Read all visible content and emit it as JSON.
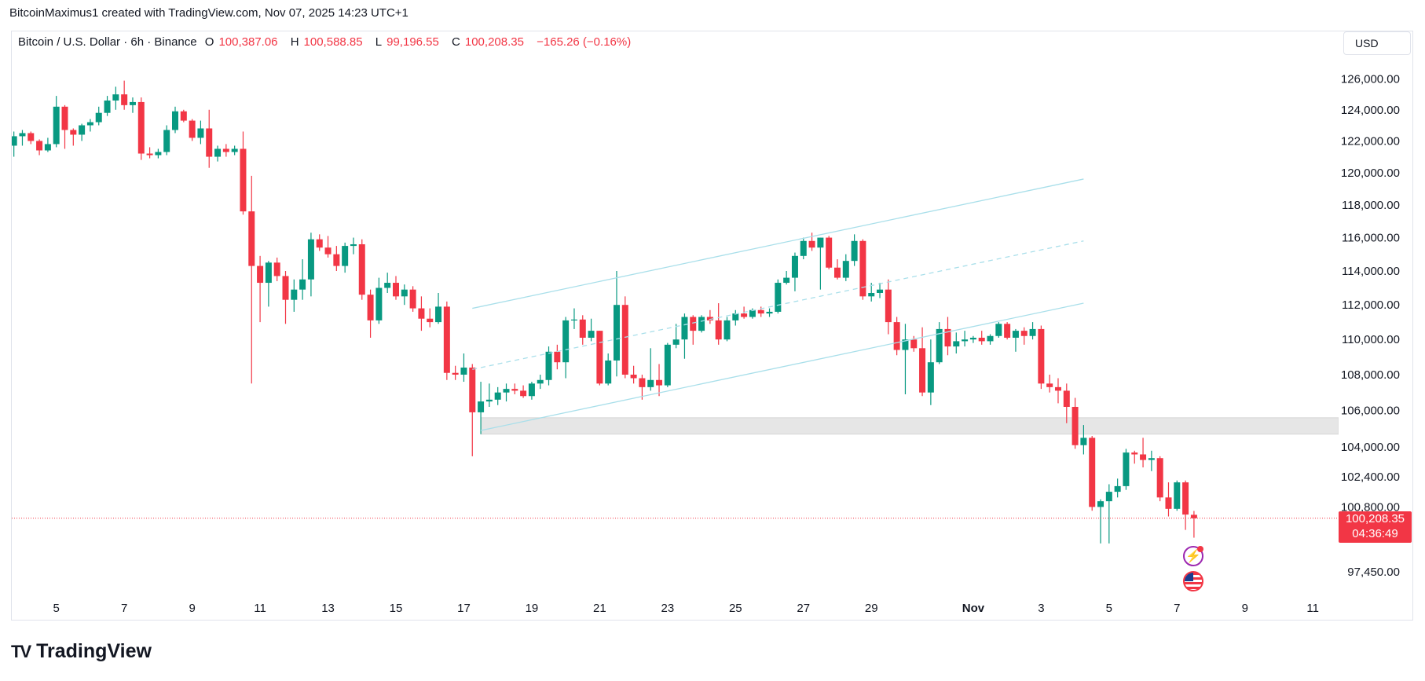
{
  "credit": "BitcoinMaximus1 created with TradingView.com, Nov 07, 2025 14:23 UTC+1",
  "legend": {
    "symbol": "Bitcoin / U.S. Dollar · 6h · Binance",
    "o_label": "O",
    "o_value": "100,387.06",
    "h_label": "H",
    "h_value": "100,588.85",
    "l_label": "L",
    "l_value": "99,196.55",
    "c_label": "C",
    "c_value": "100,208.35",
    "change": "−165.26 (−0.16%)"
  },
  "currency_button": "USD",
  "last_price": {
    "price": "100,208.35",
    "countdown": "04:36:49",
    "value": 100208.35
  },
  "brand": {
    "logo_mark": "TV",
    "name": "TradingView"
  },
  "colors": {
    "up": "#089981",
    "down": "#F23645",
    "channel": "#a9dfea",
    "zone": "#e6e6e6",
    "event_icon": "#9c27b0"
  },
  "icons": [
    "economic-event-icon",
    "us-flag-event-icon"
  ],
  "chart_data": {
    "type": "candlestick",
    "interval": "6h",
    "y_scale": "log",
    "grid": false,
    "y_ticks": [
      {
        "value": 126000,
        "label": "126,000.00"
      },
      {
        "value": 124000,
        "label": "124,000.00"
      },
      {
        "value": 122000,
        "label": "122,000.00"
      },
      {
        "value": 120000,
        "label": "120,000.00"
      },
      {
        "value": 118000,
        "label": "118,000.00"
      },
      {
        "value": 116000,
        "label": "116,000.00"
      },
      {
        "value": 114000,
        "label": "114,000.00"
      },
      {
        "value": 112000,
        "label": "112,000.00"
      },
      {
        "value": 110000,
        "label": "110,000.00"
      },
      {
        "value": 108000,
        "label": "108,000.00"
      },
      {
        "value": 106000,
        "label": "106,000.00"
      },
      {
        "value": 104000,
        "label": "104,000.00"
      },
      {
        "value": 102400,
        "label": "102,400.00"
      },
      {
        "value": 100800,
        "label": "100,800.00"
      },
      {
        "value": 97450,
        "label": "97,450.00"
      }
    ],
    "x_ticks": [
      {
        "date": "2025-10-05",
        "label": "5"
      },
      {
        "date": "2025-10-07",
        "label": "7"
      },
      {
        "date": "2025-10-09",
        "label": "9"
      },
      {
        "date": "2025-10-11",
        "label": "11"
      },
      {
        "date": "2025-10-13",
        "label": "13"
      },
      {
        "date": "2025-10-15",
        "label": "15"
      },
      {
        "date": "2025-10-17",
        "label": "17"
      },
      {
        "date": "2025-10-19",
        "label": "19"
      },
      {
        "date": "2025-10-21",
        "label": "21"
      },
      {
        "date": "2025-10-23",
        "label": "23"
      },
      {
        "date": "2025-10-25",
        "label": "25"
      },
      {
        "date": "2025-10-27",
        "label": "27"
      },
      {
        "date": "2025-10-29",
        "label": "29"
      },
      {
        "date": "2025-11-01",
        "label": "Nov"
      },
      {
        "date": "2025-11-03",
        "label": "3"
      },
      {
        "date": "2025-11-05",
        "label": "5"
      },
      {
        "date": "2025-11-07",
        "label": "7"
      },
      {
        "date": "2025-11-09",
        "label": "9"
      },
      {
        "date": "2025-11-11",
        "label": "11"
      }
    ],
    "candles_columns": [
      "time",
      "open",
      "high",
      "low",
      "close"
    ],
    "candles": [
      [
        "2025-10-03 18:00",
        121700,
        122600,
        121000,
        122300
      ],
      [
        "2025-10-04 00:00",
        122300,
        122700,
        121700,
        122500
      ],
      [
        "2025-10-04 06:00",
        122500,
        122600,
        121800,
        122000
      ],
      [
        "2025-10-04 12:00",
        122000,
        122100,
        121100,
        121400
      ],
      [
        "2025-10-04 18:00",
        121400,
        122200,
        121300,
        121800
      ],
      [
        "2025-10-05 00:00",
        121800,
        124900,
        121600,
        124200
      ],
      [
        "2025-10-05 06:00",
        124200,
        124300,
        121500,
        122700
      ],
      [
        "2025-10-05 12:00",
        122700,
        122800,
        121700,
        122400
      ],
      [
        "2025-10-05 18:00",
        122400,
        123100,
        122000,
        123000
      ],
      [
        "2025-10-06 00:00",
        123000,
        123400,
        122600,
        123200
      ],
      [
        "2025-10-06 06:00",
        123200,
        124200,
        123000,
        123800
      ],
      [
        "2025-10-06 12:00",
        123800,
        124900,
        123600,
        124600
      ],
      [
        "2025-10-06 18:00",
        124600,
        125500,
        124000,
        125000
      ],
      [
        "2025-10-07 00:00",
        125000,
        125900,
        124000,
        124300
      ],
      [
        "2025-10-07 06:00",
        124300,
        124800,
        123800,
        124500
      ],
      [
        "2025-10-07 12:00",
        124500,
        124800,
        120800,
        121200
      ],
      [
        "2025-10-07 18:00",
        121200,
        121600,
        120900,
        121100
      ],
      [
        "2025-10-08 00:00",
        121100,
        121500,
        120900,
        121300
      ],
      [
        "2025-10-08 06:00",
        121300,
        123000,
        121100,
        122700
      ],
      [
        "2025-10-08 12:00",
        122700,
        124200,
        122500,
        123900
      ],
      [
        "2025-10-08 18:00",
        123900,
        124000,
        123200,
        123300
      ],
      [
        "2025-10-09 00:00",
        123300,
        123400,
        122000,
        122200
      ],
      [
        "2025-10-09 06:00",
        122200,
        123300,
        121800,
        122800
      ],
      [
        "2025-10-09 12:00",
        122800,
        124000,
        120300,
        121000
      ],
      [
        "2025-10-09 18:00",
        121000,
        121700,
        120700,
        121500
      ],
      [
        "2025-10-10 00:00",
        121500,
        121800,
        121000,
        121300
      ],
      [
        "2025-10-10 06:00",
        121300,
        121700,
        121100,
        121500
      ],
      [
        "2025-10-10 12:00",
        121500,
        122600,
        117400,
        117600
      ],
      [
        "2025-10-10 18:00",
        117600,
        119800,
        107500,
        114300
      ],
      [
        "2025-10-11 00:00",
        114300,
        114900,
        111000,
        113300
      ],
      [
        "2025-10-11 06:00",
        113300,
        114600,
        111900,
        114500
      ],
      [
        "2025-10-11 12:00",
        114500,
        114800,
        113400,
        113700
      ],
      [
        "2025-10-11 18:00",
        113700,
        114000,
        110900,
        112300
      ],
      [
        "2025-10-12 00:00",
        112300,
        113500,
        111600,
        112900
      ],
      [
        "2025-10-12 06:00",
        112900,
        114700,
        112300,
        113500
      ],
      [
        "2025-10-12 12:00",
        113500,
        116300,
        112500,
        115900
      ],
      [
        "2025-10-12 18:00",
        115900,
        116200,
        115200,
        115400
      ],
      [
        "2025-10-13 00:00",
        115400,
        116100,
        114800,
        115000
      ],
      [
        "2025-10-13 06:00",
        115000,
        115500,
        114000,
        114300
      ],
      [
        "2025-10-13 12:00",
        114300,
        115700,
        113900,
        115500
      ],
      [
        "2025-10-13 18:00",
        115500,
        116000,
        115000,
        115600
      ],
      [
        "2025-10-14 00:00",
        115600,
        115900,
        112300,
        112600
      ],
      [
        "2025-10-14 06:00",
        112600,
        112900,
        110100,
        111100
      ],
      [
        "2025-10-14 12:00",
        111100,
        113600,
        110900,
        113000
      ],
      [
        "2025-10-14 18:00",
        113000,
        113900,
        112700,
        113300
      ],
      [
        "2025-10-15 00:00",
        113300,
        113700,
        112300,
        112500
      ],
      [
        "2025-10-15 06:00",
        112500,
        113200,
        112000,
        112900
      ],
      [
        "2025-10-15 12:00",
        112900,
        113100,
        111600,
        111800
      ],
      [
        "2025-10-15 18:00",
        111800,
        112500,
        110500,
        111200
      ],
      [
        "2025-10-16 00:00",
        111200,
        111800,
        110700,
        111000
      ],
      [
        "2025-10-16 06:00",
        111000,
        112700,
        110900,
        111900
      ],
      [
        "2025-10-16 12:00",
        111900,
        112200,
        107700,
        108100
      ],
      [
        "2025-10-16 18:00",
        108100,
        108500,
        107700,
        108000
      ],
      [
        "2025-10-17 00:00",
        108000,
        109200,
        107600,
        108400
      ],
      [
        "2025-10-17 06:00",
        108400,
        108600,
        103500,
        105900
      ],
      [
        "2025-10-17 12:00",
        105900,
        107600,
        104700,
        106500
      ],
      [
        "2025-10-17 18:00",
        106500,
        107500,
        106200,
        106600
      ],
      [
        "2025-10-18 00:00",
        106600,
        107300,
        106300,
        107000
      ],
      [
        "2025-10-18 06:00",
        107000,
        107500,
        106500,
        107200
      ],
      [
        "2025-10-18 12:00",
        107200,
        107500,
        106900,
        107100
      ],
      [
        "2025-10-18 18:00",
        107100,
        107400,
        106700,
        106800
      ],
      [
        "2025-10-19 00:00",
        106800,
        107600,
        106600,
        107500
      ],
      [
        "2025-10-19 06:00",
        107500,
        108000,
        107200,
        107700
      ],
      [
        "2025-10-19 12:00",
        107700,
        109600,
        107400,
        109300
      ],
      [
        "2025-10-19 18:00",
        109300,
        109700,
        108300,
        108700
      ],
      [
        "2025-10-20 00:00",
        108700,
        111300,
        107800,
        111100
      ],
      [
        "2025-10-20 06:00",
        111100,
        111800,
        110600,
        111150
      ],
      [
        "2025-10-20 12:00",
        111150,
        111400,
        109700,
        110100
      ],
      [
        "2025-10-20 18:00",
        110100,
        111200,
        109900,
        110500
      ],
      [
        "2025-10-21 00:00",
        110500,
        110500,
        107400,
        107500
      ],
      [
        "2025-10-21 06:00",
        107500,
        109200,
        107400,
        108800
      ],
      [
        "2025-10-21 12:00",
        108800,
        114000,
        107900,
        112000
      ],
      [
        "2025-10-21 18:00",
        112000,
        112500,
        107800,
        108000
      ],
      [
        "2025-10-22 00:00",
        108000,
        108500,
        107500,
        107800
      ],
      [
        "2025-10-22 06:00",
        107800,
        108000,
        106600,
        107300
      ],
      [
        "2025-10-22 12:00",
        107300,
        109500,
        107100,
        107700
      ],
      [
        "2025-10-22 18:00",
        107700,
        108600,
        106800,
        107400
      ],
      [
        "2025-10-23 00:00",
        107400,
        109800,
        107300,
        109700
      ],
      [
        "2025-10-23 06:00",
        109700,
        110900,
        109500,
        110000
      ],
      [
        "2025-10-23 12:00",
        110000,
        111500,
        108900,
        111300
      ],
      [
        "2025-10-23 18:00",
        111300,
        111400,
        109700,
        110500
      ],
      [
        "2025-10-24 00:00",
        110500,
        111400,
        110400,
        111300
      ],
      [
        "2025-10-24 06:00",
        111300,
        111700,
        110900,
        111100
      ],
      [
        "2025-10-24 12:00",
        111100,
        112100,
        109700,
        110000
      ],
      [
        "2025-10-24 18:00",
        110000,
        111300,
        109900,
        111100
      ],
      [
        "2025-10-25 00:00",
        111100,
        111700,
        110800,
        111500
      ],
      [
        "2025-10-25 06:00",
        111500,
        111900,
        111200,
        111300
      ],
      [
        "2025-10-25 12:00",
        111300,
        111800,
        111200,
        111700
      ],
      [
        "2025-10-25 18:00",
        111700,
        111900,
        111300,
        111500
      ],
      [
        "2025-10-26 00:00",
        111500,
        111800,
        111300,
        111600
      ],
      [
        "2025-10-26 06:00",
        111600,
        113500,
        111500,
        113300
      ],
      [
        "2025-10-26 12:00",
        113300,
        114000,
        113200,
        113600
      ],
      [
        "2025-10-26 18:00",
        113600,
        115100,
        112800,
        114900
      ],
      [
        "2025-10-27 00:00",
        114900,
        116000,
        114700,
        115800
      ],
      [
        "2025-10-27 06:00",
        115800,
        116300,
        115200,
        115400
      ],
      [
        "2025-10-27 12:00",
        115400,
        116000,
        112900,
        116000
      ],
      [
        "2025-10-27 18:00",
        116000,
        116100,
        114100,
        114200
      ],
      [
        "2025-10-28 00:00",
        114200,
        114700,
        113500,
        113600
      ],
      [
        "2025-10-28 06:00",
        113600,
        115000,
        113400,
        114600
      ],
      [
        "2025-10-28 12:00",
        114600,
        116200,
        114300,
        115800
      ],
      [
        "2025-10-28 18:00",
        115800,
        115900,
        112300,
        112500
      ],
      [
        "2025-10-29 00:00",
        112500,
        113300,
        112200,
        112700
      ],
      [
        "2025-10-29 06:00",
        112700,
        113300,
        112400,
        112900
      ],
      [
        "2025-10-29 12:00",
        112900,
        113500,
        110300,
        111000
      ],
      [
        "2025-10-29 18:00",
        111000,
        111300,
        109100,
        109400
      ],
      [
        "2025-10-30 00:00",
        109400,
        110900,
        106900,
        110000
      ],
      [
        "2025-10-30 06:00",
        110000,
        110200,
        109300,
        109500
      ],
      [
        "2025-10-30 12:00",
        109500,
        110700,
        106800,
        107000
      ],
      [
        "2025-10-30 18:00",
        107000,
        110000,
        106300,
        108700
      ],
      [
        "2025-10-31 00:00",
        108700,
        111000,
        108600,
        110600
      ],
      [
        "2025-10-31 06:00",
        110600,
        111300,
        109100,
        109600
      ],
      [
        "2025-10-31 12:00",
        109600,
        110400,
        109200,
        109900
      ],
      [
        "2025-10-31 18:00",
        109900,
        110500,
        109600,
        110000
      ],
      [
        "2025-11-01 00:00",
        110000,
        110200,
        109800,
        110100
      ],
      [
        "2025-11-01 06:00",
        110100,
        110500,
        109700,
        109900
      ],
      [
        "2025-11-01 12:00",
        109900,
        110300,
        109700,
        110200
      ],
      [
        "2025-11-01 18:00",
        110200,
        111000,
        110100,
        110900
      ],
      [
        "2025-11-02 00:00",
        110900,
        111000,
        110000,
        110100
      ],
      [
        "2025-11-02 06:00",
        110100,
        110600,
        109300,
        110500
      ],
      [
        "2025-11-02 12:00",
        110500,
        110700,
        109700,
        110200
      ],
      [
        "2025-11-02 18:00",
        110200,
        111000,
        110000,
        110600
      ],
      [
        "2025-11-03 00:00",
        110600,
        110800,
        107200,
        107500
      ],
      [
        "2025-11-03 06:00",
        107500,
        108000,
        107000,
        107300
      ],
      [
        "2025-11-03 12:00",
        107300,
        107800,
        106400,
        107100
      ],
      [
        "2025-11-03 18:00",
        107100,
        107500,
        105300,
        106200
      ],
      [
        "2025-11-04 00:00",
        106200,
        106700,
        103900,
        104100
      ],
      [
        "2025-11-04 06:00",
        104100,
        105200,
        103600,
        104500
      ],
      [
        "2025-11-04 12:00",
        104500,
        104600,
        100600,
        100800
      ],
      [
        "2025-11-04 18:00",
        100800,
        101200,
        98900,
        101100
      ],
      [
        "2025-11-05 00:00",
        101100,
        102000,
        98900,
        101600
      ],
      [
        "2025-11-05 06:00",
        101600,
        102300,
        101300,
        101900
      ],
      [
        "2025-11-05 12:00",
        101900,
        103900,
        101700,
        103700
      ],
      [
        "2025-11-05 18:00",
        103700,
        103800,
        103100,
        103600
      ],
      [
        "2025-11-06 00:00",
        103600,
        104500,
        102900,
        103300
      ],
      [
        "2025-11-06 06:00",
        103300,
        103800,
        102700,
        103400
      ],
      [
        "2025-11-06 12:00",
        103400,
        103500,
        101100,
        101300
      ],
      [
        "2025-11-06 18:00",
        101300,
        102100,
        100300,
        100700
      ],
      [
        "2025-11-07 00:00",
        100700,
        102200,
        100600,
        102100
      ],
      [
        "2025-11-07 06:00",
        102100,
        102200,
        99600,
        100400
      ],
      [
        "2025-11-07 12:00",
        100387.06,
        100588.85,
        99196.55,
        100208.35
      ]
    ],
    "drawings": {
      "parallel_channel": {
        "upper": [
          [
            "2025-10-17 06:00",
            111800
          ],
          [
            "2025-11-04 06:00",
            119600
          ]
        ],
        "middle": [
          [
            "2025-10-17 06:00",
            108300
          ],
          [
            "2025-11-04 06:00",
            115800
          ]
        ],
        "lower": [
          [
            "2025-10-17 12:00",
            104900
          ],
          [
            "2025-11-04 06:00",
            112100
          ]
        ]
      },
      "support_zone": {
        "from": "2025-10-17 12:00",
        "extends_right": true,
        "top": 105600,
        "bottom": 104700
      }
    }
  }
}
